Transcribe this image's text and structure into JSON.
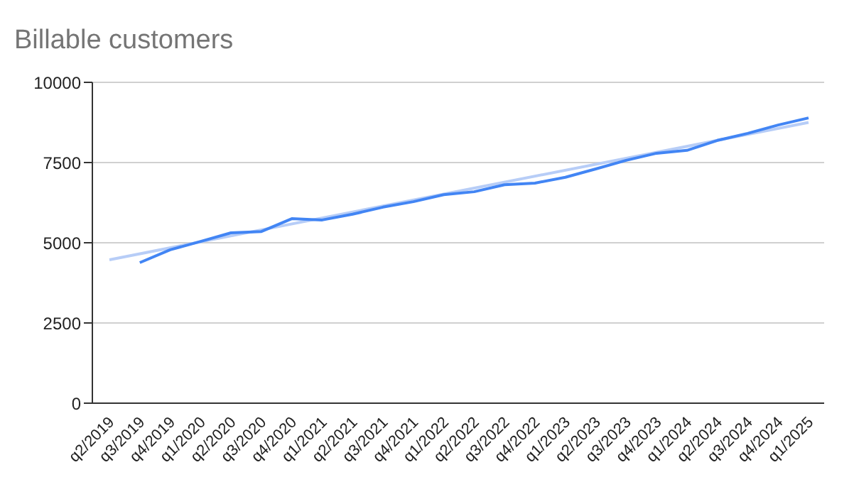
{
  "chart_data": {
    "type": "line",
    "title": "Billable customers",
    "categories": [
      "q2/2019",
      "q3/2019",
      "q4/2019",
      "q1/2020",
      "q2/2020",
      "q3/2020",
      "q4/2020",
      "q1/2021",
      "q2/2021",
      "q3/2021",
      "q4/2021",
      "q1/2022",
      "q2/2022",
      "q3/2022",
      "q4/2022",
      "q1/2023",
      "q2/2023",
      "q3/2023",
      "q4/2023",
      "q1/2024",
      "q2/2024",
      "q3/2024",
      "q4/2024",
      "q1/2025"
    ],
    "series": [
      {
        "color": "#4285f4",
        "values": [
          null,
          4380,
          4780,
          5040,
          5310,
          5350,
          5750,
          5710,
          5890,
          6110,
          6280,
          6500,
          6590,
          6810,
          6860,
          7040,
          7300,
          7570,
          7790,
          7880,
          8190,
          8410,
          8670,
          8890
        ]
      },
      {
        "color": "#b7cdf7",
        "values": [
          4470,
          null,
          null,
          null,
          null,
          null,
          null,
          null,
          null,
          null,
          null,
          null,
          null,
          null,
          null,
          null,
          null,
          null,
          null,
          null,
          null,
          null,
          null,
          8750
        ]
      }
    ],
    "ylim": [
      0,
      10000
    ],
    "yticks": [
      0,
      2500,
      5000,
      7500,
      10000
    ],
    "grid": "y",
    "legend": false,
    "marker": "none",
    "line_style": "solid"
  }
}
